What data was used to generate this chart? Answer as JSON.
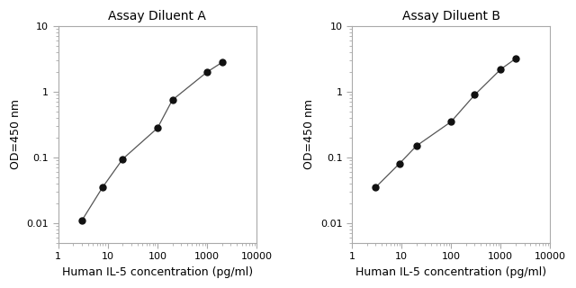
{
  "panel_A": {
    "title": "Assay Diluent A",
    "x": [
      3,
      7.8,
      20,
      100,
      200,
      1000,
      2000
    ],
    "y": [
      0.011,
      0.035,
      0.095,
      0.28,
      0.75,
      2.0,
      2.8
    ]
  },
  "panel_B": {
    "title": "Assay Diluent B",
    "x": [
      3,
      9,
      20,
      100,
      300,
      1000,
      2000
    ],
    "y": [
      0.035,
      0.08,
      0.15,
      0.35,
      0.9,
      2.2,
      3.2
    ]
  },
  "xlabel": "Human IL-5 concentration (pg/ml)",
  "ylabel": "OD=450 nm",
  "xlim": [
    1,
    10000
  ],
  "ylim": [
    0.005,
    10
  ],
  "yticks": [
    0.01,
    0.1,
    1,
    10
  ],
  "ytick_labels": [
    "0.01",
    "0.1",
    "1",
    "10"
  ],
  "xticks": [
    1,
    10,
    100,
    1000,
    10000
  ],
  "xtick_labels": [
    "1",
    "10",
    "100",
    "1000",
    "10000"
  ],
  "line_color": "#555555",
  "marker_color": "#111111",
  "marker_size": 5,
  "title_fontsize": 10,
  "label_fontsize": 9,
  "tick_fontsize": 8,
  "background_color": "#ffffff",
  "spine_color": "#aaaaaa"
}
